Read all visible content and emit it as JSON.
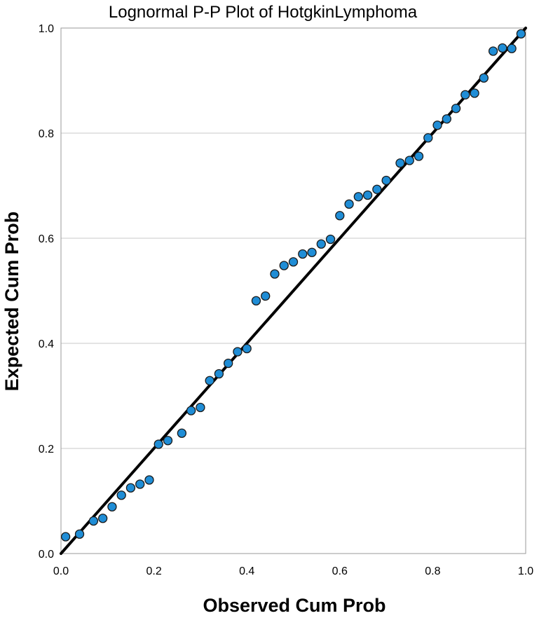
{
  "chart_data": {
    "type": "scatter",
    "title": "Lognormal P-P Plot of HotgkinLymphoma",
    "xlabel": "Observed Cum Prob",
    "ylabel": "Expected Cum Prob",
    "xlim": [
      0.0,
      1.0
    ],
    "ylim": [
      0.0,
      1.0
    ],
    "x_ticks": [
      "0.0",
      "0.2",
      "0.4",
      "0.6",
      "0.8",
      "1.0"
    ],
    "y_ticks": [
      "0.0",
      "0.2",
      "0.4",
      "0.6",
      "0.8",
      "1.0"
    ],
    "grid": "horizontal",
    "reference_line": {
      "x": [
        0.0,
        1.0
      ],
      "y": [
        0.0,
        1.0
      ]
    },
    "series": [
      {
        "color": "#1f8dd6",
        "points": [
          [
            0.01,
            0.032
          ],
          [
            0.04,
            0.037
          ],
          [
            0.07,
            0.062
          ],
          [
            0.09,
            0.067
          ],
          [
            0.11,
            0.089
          ],
          [
            0.13,
            0.111
          ],
          [
            0.15,
            0.125
          ],
          [
            0.17,
            0.132
          ],
          [
            0.19,
            0.14
          ],
          [
            0.21,
            0.208
          ],
          [
            0.23,
            0.215
          ],
          [
            0.26,
            0.229
          ],
          [
            0.28,
            0.272
          ],
          [
            0.3,
            0.278
          ],
          [
            0.32,
            0.329
          ],
          [
            0.34,
            0.342
          ],
          [
            0.36,
            0.362
          ],
          [
            0.38,
            0.384
          ],
          [
            0.4,
            0.39
          ],
          [
            0.42,
            0.481
          ],
          [
            0.44,
            0.49
          ],
          [
            0.46,
            0.532
          ],
          [
            0.48,
            0.548
          ],
          [
            0.5,
            0.555
          ],
          [
            0.52,
            0.57
          ],
          [
            0.54,
            0.573
          ],
          [
            0.56,
            0.589
          ],
          [
            0.58,
            0.598
          ],
          [
            0.6,
            0.643
          ],
          [
            0.62,
            0.665
          ],
          [
            0.64,
            0.679
          ],
          [
            0.66,
            0.682
          ],
          [
            0.68,
            0.693
          ],
          [
            0.7,
            0.71
          ],
          [
            0.73,
            0.743
          ],
          [
            0.75,
            0.748
          ],
          [
            0.77,
            0.756
          ],
          [
            0.79,
            0.791
          ],
          [
            0.81,
            0.815
          ],
          [
            0.83,
            0.827
          ],
          [
            0.85,
            0.847
          ],
          [
            0.87,
            0.873
          ],
          [
            0.89,
            0.876
          ],
          [
            0.91,
            0.905
          ],
          [
            0.93,
            0.956
          ],
          [
            0.95,
            0.962
          ],
          [
            0.97,
            0.961
          ],
          [
            0.99,
            0.989
          ]
        ]
      }
    ]
  }
}
